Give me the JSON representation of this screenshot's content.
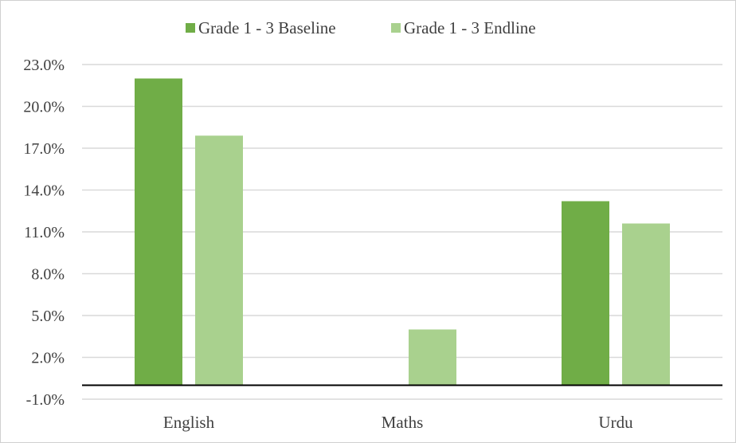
{
  "chart_data": {
    "type": "bar",
    "title": "",
    "xlabel": "",
    "ylabel": "",
    "categories": [
      "English",
      "Maths",
      "Urdu"
    ],
    "series": [
      {
        "name": "Grade 1 - 3 Baseline",
        "color": "#70ad47",
        "values": [
          22.0,
          0.0,
          13.2
        ]
      },
      {
        "name": "Grade 1 - 3 Endline",
        "color": "#a9d18e",
        "values": [
          17.9,
          4.0,
          11.6
        ]
      }
    ],
    "ylim": [
      -1.0,
      23.0
    ],
    "yticks": [
      "23.0%",
      "20.0%",
      "17.0%",
      "14.0%",
      "11.0%",
      "8.0%",
      "5.0%",
      "2.0%",
      "-1.0%"
    ],
    "ytick_values": [
      23,
      20,
      17,
      14,
      11,
      8,
      5,
      2,
      -1
    ],
    "grid": true,
    "legend_position": "top"
  }
}
